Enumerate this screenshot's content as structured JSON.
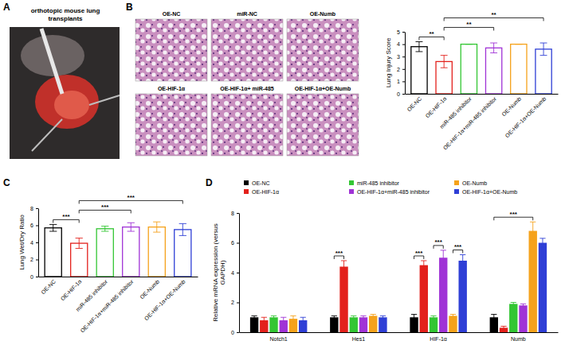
{
  "figure": {
    "panel_letters": [
      "A",
      "B",
      "C",
      "D"
    ],
    "photo_caption": "orthotopic mouse lung transplants",
    "histology_labels": [
      "OE-NC",
      "miR-NC",
      "OE-Numb",
      "OE-HIF-1α",
      "OE-HIF-1α+ miR-485",
      "OE-HIF-1α+OE-Numb"
    ]
  },
  "chart_data": [
    {
      "type": "bar",
      "ylabel": "Lung Injury Score",
      "categories": [
        "OE-NC",
        "OE-HIF-1α",
        "miR-485 inhibitor",
        "OE-HIF-1α+miR-485 inhibitor",
        "OE-Numb",
        "OE-HIF-1α+OE-Numb"
      ],
      "values": [
        3.8,
        2.6,
        4.0,
        3.7,
        4.0,
        3.6
      ],
      "errors": [
        0.4,
        0.5,
        0.0,
        0.4,
        0.0,
        0.5
      ],
      "colors": [
        "#000000",
        "#e3211c",
        "#33c633",
        "#a033d6",
        "#f5a21b",
        "#2f3fd6"
      ],
      "ylim": [
        0,
        5
      ],
      "yticks": [
        0,
        1,
        2,
        3,
        4,
        5
      ],
      "annotations": [
        {
          "text": "**",
          "between": [
            "OE-NC",
            "OE-HIF-1α"
          ]
        },
        {
          "text": "**",
          "between": [
            "OE-HIF-1α",
            "OE-HIF-1α+miR-485 inhibitor"
          ]
        },
        {
          "text": "**",
          "between": [
            "OE-HIF-1α",
            "OE-HIF-1α+OE-Numb"
          ]
        }
      ]
    },
    {
      "type": "bar",
      "ylabel": "Lung Wet/Dry Ratio",
      "categories": [
        "OE-NC",
        "OE-HIF-1α",
        "miR-485 inhibitor",
        "OE-HIF-1α+miR-485 inhibitor",
        "OE-Numb",
        "OE-HIF-1α+OE-Numb"
      ],
      "values": [
        5.7,
        3.9,
        5.6,
        5.8,
        5.8,
        5.5
      ],
      "errors": [
        0.4,
        0.6,
        0.3,
        0.5,
        0.6,
        0.7
      ],
      "colors": [
        "#000000",
        "#e3211c",
        "#33c633",
        "#a033d6",
        "#f5a21b",
        "#2f3fd6"
      ],
      "ylim": [
        0,
        8
      ],
      "yticks": [
        0,
        2,
        4,
        6,
        8
      ],
      "annotations": [
        {
          "text": "***",
          "between": [
            "OE-NC",
            "OE-HIF-1α"
          ]
        },
        {
          "text": "***",
          "between": [
            "OE-HIF-1α",
            "OE-HIF-1α+miR-485 inhibitor"
          ]
        },
        {
          "text": "***",
          "between": [
            "OE-HIF-1α",
            "OE-HIF-1α+OE-Numb"
          ]
        }
      ]
    },
    {
      "type": "bar",
      "ylabel": "Relative mRNA expression (versus GAPDH)",
      "categories": [
        "Notch1",
        "Hes1",
        "HIF-1α",
        "Numb"
      ],
      "series": [
        {
          "name": "OE-NC",
          "color": "#000000",
          "values": [
            1.0,
            1.0,
            1.0,
            1.0
          ],
          "errors": [
            0.1,
            0.1,
            0.2,
            0.2
          ]
        },
        {
          "name": "OE-HIF-1α",
          "color": "#e3211c",
          "values": [
            0.8,
            4.4,
            4.5,
            0.3
          ],
          "errors": [
            0.2,
            0.4,
            0.3,
            0.1
          ]
        },
        {
          "name": "miR-485 inhibitor",
          "color": "#33c633",
          "values": [
            1.0,
            1.0,
            1.0,
            1.9
          ],
          "errors": [
            0.1,
            0.1,
            0.1,
            0.1
          ]
        },
        {
          "name": "OE-HIF-1α+miR-485 inhibitor",
          "color": "#a033d6",
          "values": [
            0.8,
            1.0,
            5.0,
            1.8
          ],
          "errors": [
            0.2,
            0.1,
            0.5,
            0.1
          ]
        },
        {
          "name": "OE-Numb",
          "color": "#f5a21b",
          "values": [
            0.9,
            1.1,
            1.1,
            6.8
          ],
          "errors": [
            0.2,
            0.1,
            0.1,
            0.6
          ]
        },
        {
          "name": "OE-HIF-1α+OE-Numb",
          "color": "#2f3fd6",
          "values": [
            0.8,
            1.0,
            4.8,
            6.0
          ],
          "errors": [
            0.2,
            0.1,
            0.4,
            0.3
          ]
        }
      ],
      "ylim": [
        0,
        8
      ],
      "yticks": [
        0,
        2,
        4,
        6,
        8
      ],
      "legend": "top",
      "annotations": [
        {
          "text": "***",
          "category": "Hes1",
          "between": [
            "OE-NC",
            "OE-HIF-1α"
          ]
        },
        {
          "text": "***",
          "category": "HIF-1α",
          "between": [
            "OE-NC",
            "OE-HIF-1α"
          ]
        },
        {
          "text": "***",
          "category": "HIF-1α",
          "between": [
            "miR-485 inhibitor",
            "OE-HIF-1α+miR-485 inhibitor"
          ]
        },
        {
          "text": "***",
          "category": "HIF-1α",
          "between": [
            "OE-Numb",
            "OE-HIF-1α+OE-Numb"
          ]
        },
        {
          "text": "***",
          "category": "Numb",
          "between": [
            "OE-NC",
            "OE-Numb"
          ]
        }
      ]
    }
  ]
}
